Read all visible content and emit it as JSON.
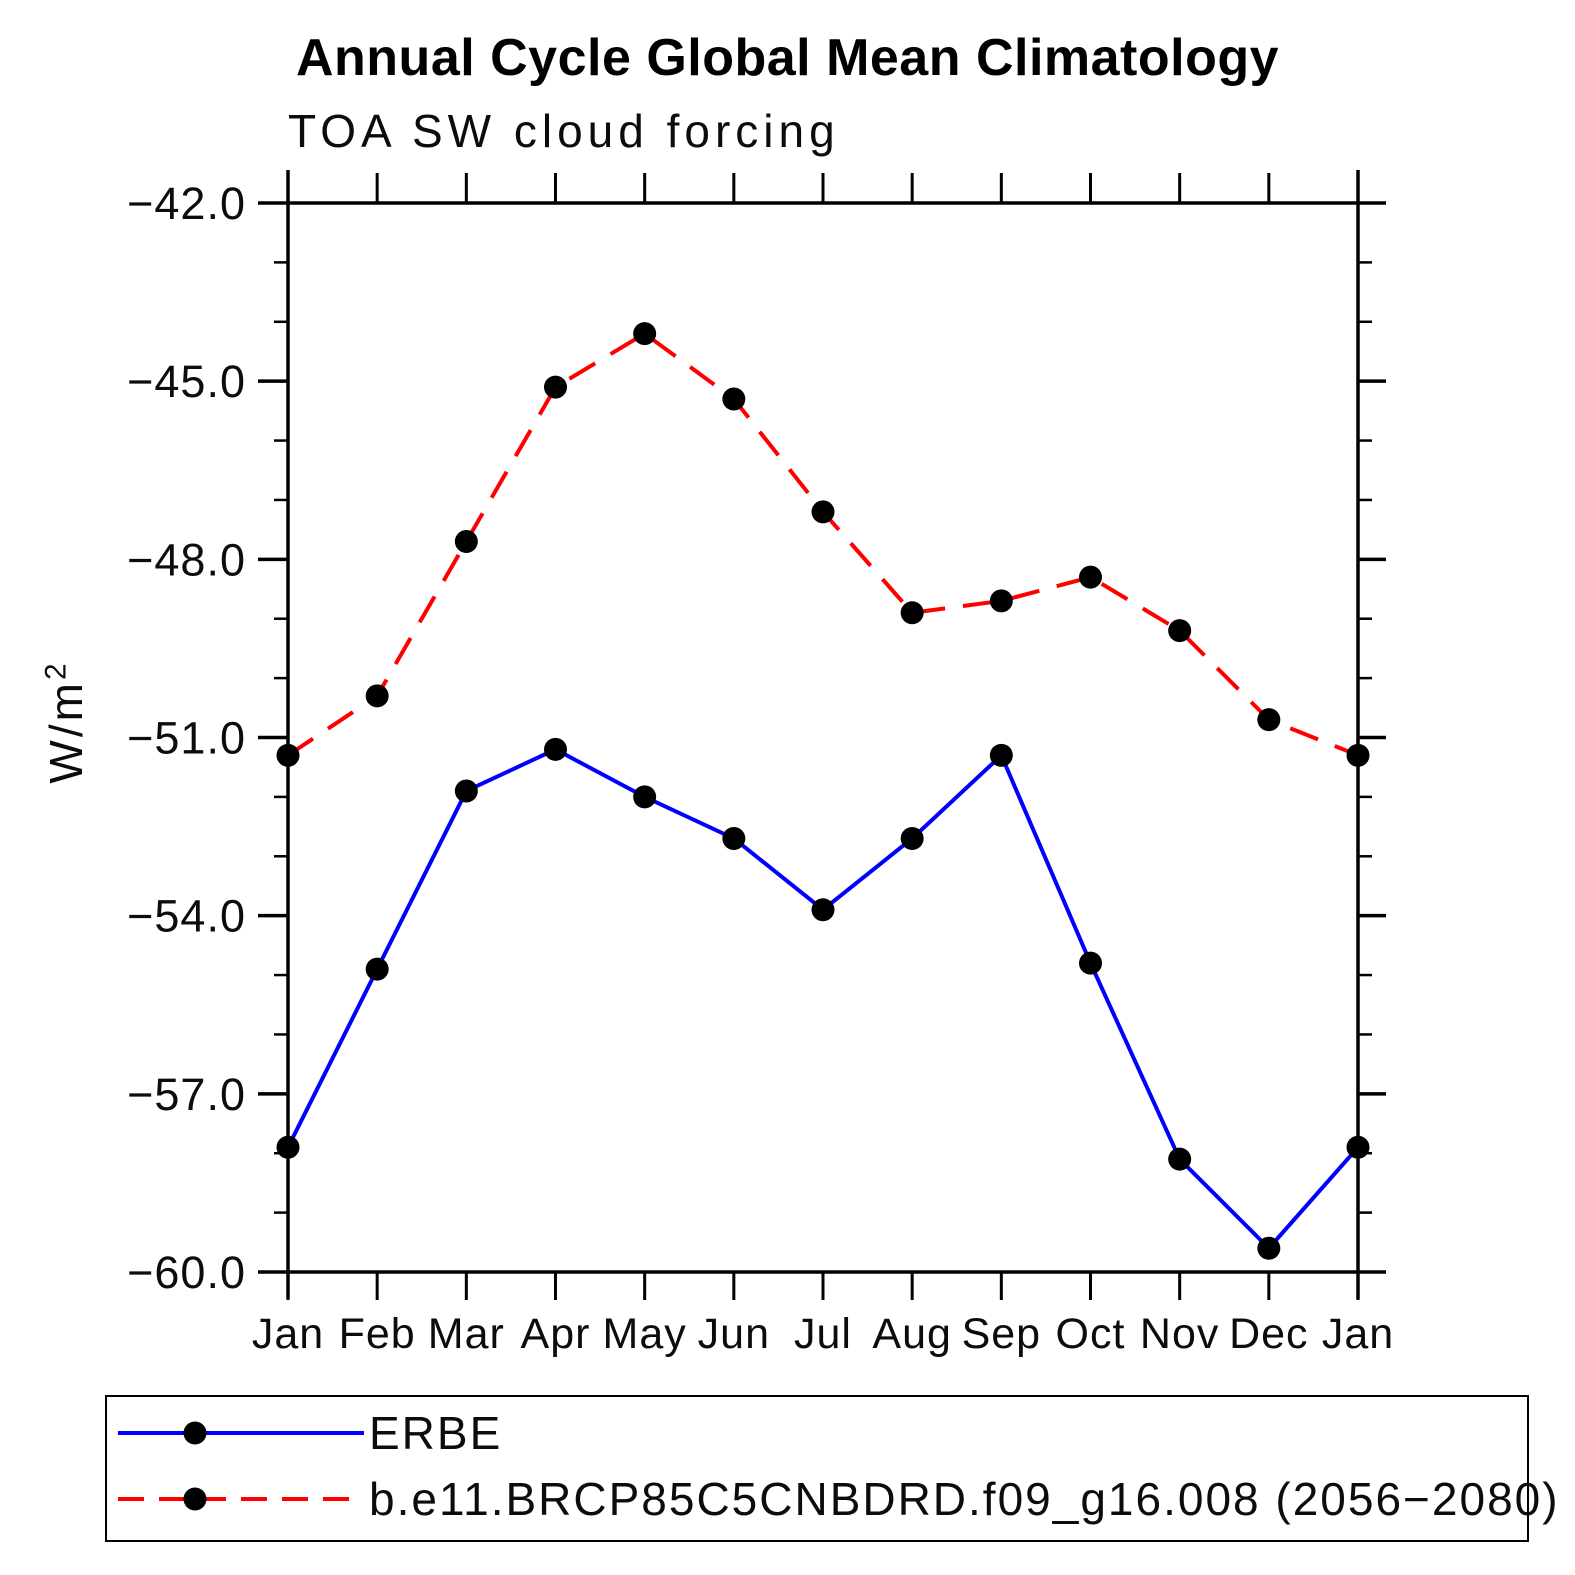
{
  "header": {
    "title": "Annual Cycle Global Mean Climatology",
    "subtitle": "TOA SW cloud forcing"
  },
  "axes": {
    "y_unit_base": "W/m",
    "y_unit_exp": "2",
    "y_tick_labels": [
      "−42.0",
      "−45.0",
      "−48.0",
      "−51.0",
      "−54.0",
      "−57.0",
      "−60.0"
    ],
    "x_tick_labels": [
      "Jan",
      "Feb",
      "Mar",
      "Apr",
      "May",
      "Jun",
      "Jul",
      "Aug",
      "Sep",
      "Oct",
      "Nov",
      "Dec",
      "Jan"
    ]
  },
  "colors": {
    "erbe_line": "#0000ff",
    "model_line": "#ff0000",
    "marker": "#000000",
    "axis": "#000000"
  },
  "legend": {
    "erbe_label": "ERBE",
    "model_label": "b.e11.BRCP85C5CNBDRD.f09_g16.008 (2056−2080)"
  },
  "chart_data": {
    "type": "line",
    "title": "Annual Cycle Global Mean Climatology",
    "subtitle": "TOA SW cloud forcing",
    "ylabel": "W/m²",
    "xlabel": "",
    "categories": [
      "Jan",
      "Feb",
      "Mar",
      "Apr",
      "May",
      "Jun",
      "Jul",
      "Aug",
      "Sep",
      "Oct",
      "Nov",
      "Dec",
      "Jan"
    ],
    "ylim": [
      -60.0,
      -42.0
    ],
    "ytick_major": [
      -42.0,
      -45.0,
      -48.0,
      -51.0,
      -54.0,
      -57.0,
      -60.0
    ],
    "ytick_labels": [
      "−42.0",
      "−45.0",
      "−48.0",
      "−51.0",
      "−54.0",
      "−57.0",
      "−60.0"
    ],
    "ytick_minor_step": 1.0,
    "grid": false,
    "legend_position": "bottom",
    "series": [
      {
        "name": "ERBE",
        "style": "solid",
        "color": "#0000ff",
        "marker": "filled-circle",
        "values": [
          -57.9,
          -54.9,
          -51.9,
          -51.2,
          -52.0,
          -52.7,
          -53.9,
          -52.7,
          -51.3,
          -54.8,
          -58.1,
          -59.6,
          -57.9
        ]
      },
      {
        "name": "b.e11.BRCP85C5CNBDRD.f09_g16.008 (2056−2080)",
        "style": "dashed",
        "color": "#ff0000",
        "marker": "filled-circle",
        "values": [
          -51.3,
          -50.3,
          -47.7,
          -45.1,
          -44.2,
          -45.3,
          -47.2,
          -48.9,
          -48.7,
          -48.3,
          -49.2,
          -50.7,
          -51.3
        ]
      }
    ]
  }
}
